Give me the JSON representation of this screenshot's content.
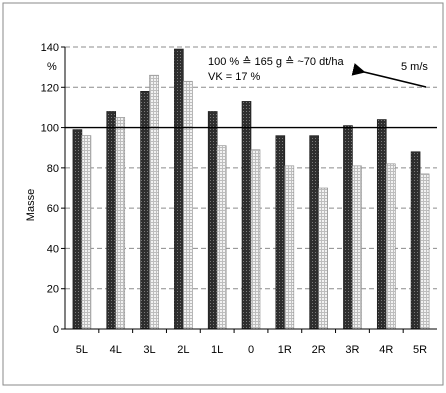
{
  "chart_data": {
    "type": "bar",
    "ylabel": "Masse",
    "yunit": "%",
    "ylim": [
      0,
      140
    ],
    "yticks": [
      0,
      20,
      40,
      60,
      80,
      100,
      120,
      140
    ],
    "grid": true,
    "reference_line": 100,
    "categories": [
      "5L",
      "4L",
      "3L",
      "2L",
      "1L",
      "0",
      "1R",
      "2R",
      "3R",
      "4R",
      "5R"
    ],
    "series": [
      {
        "values": [
          99,
          108,
          118,
          139,
          108,
          113,
          96,
          96,
          101,
          104,
          88
        ],
        "color": "#3a3a3a"
      },
      {
        "values": [
          96,
          105,
          126,
          123,
          91,
          89,
          81,
          70,
          81,
          82,
          77
        ],
        "color": "#e4e4e4"
      }
    ],
    "annotations": {
      "line1": "100 % ≙ 165 g ≙ ~70 dt/ha",
      "line2": "VK = 17 %",
      "wind_label": "5 m/s"
    },
    "colors": {
      "frame": "#8a8a8a",
      "grid": "#8c8c8c",
      "axis": "#000000"
    }
  }
}
